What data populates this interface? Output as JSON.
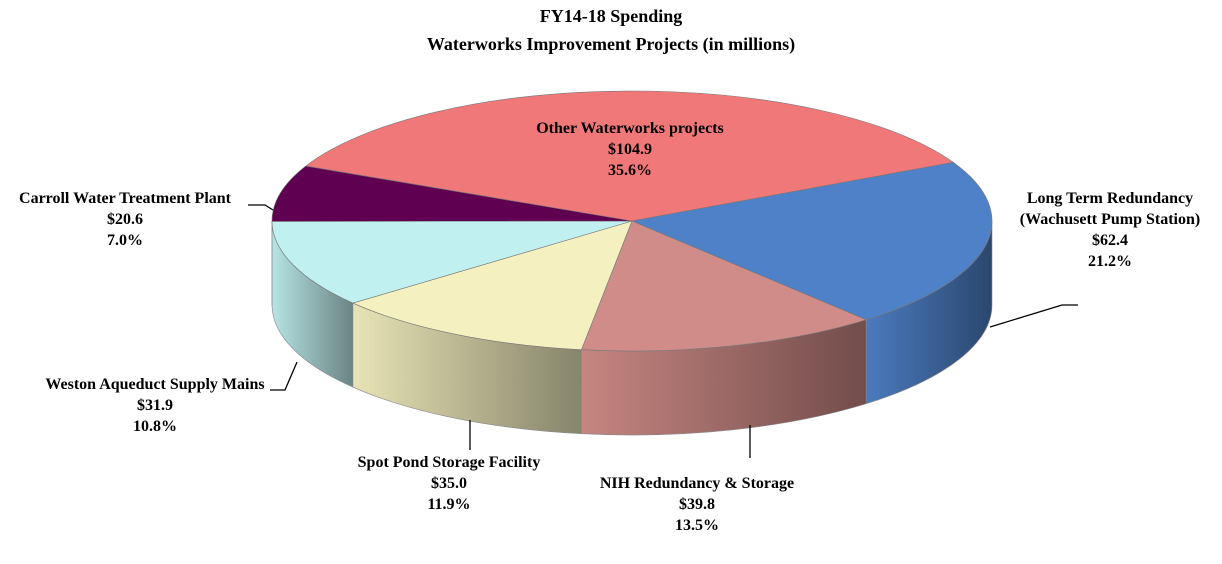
{
  "chart_data": {
    "type": "pie3d",
    "title": "FY14-18 Spending",
    "subtitle": "Waterworks Improvement Projects (in millions)",
    "categories": [
      "Other Waterworks projects",
      "Long Term Redundancy (Wachusett Pump Station)",
      "NIH Redundancy & Storage",
      "Spot Pond Storage Facility",
      "Weston Aqueduct Supply Mains",
      "Carroll Water Treatment Plant"
    ],
    "values": [
      104.9,
      62.4,
      39.8,
      35.0,
      31.9,
      20.6
    ],
    "value_labels": [
      "$104.9",
      "$62.4",
      "$39.8",
      "$35.0",
      "$31.9",
      "$20.6"
    ],
    "percent_labels": [
      "35.6%",
      "21.2%",
      "13.5%",
      "11.9%",
      "10.8%",
      "7.0%"
    ],
    "colors": [
      "#f07878",
      "#4f81c8",
      "#d08c88",
      "#f4f0c0",
      "#c0f0f0",
      "#600050"
    ]
  }
}
